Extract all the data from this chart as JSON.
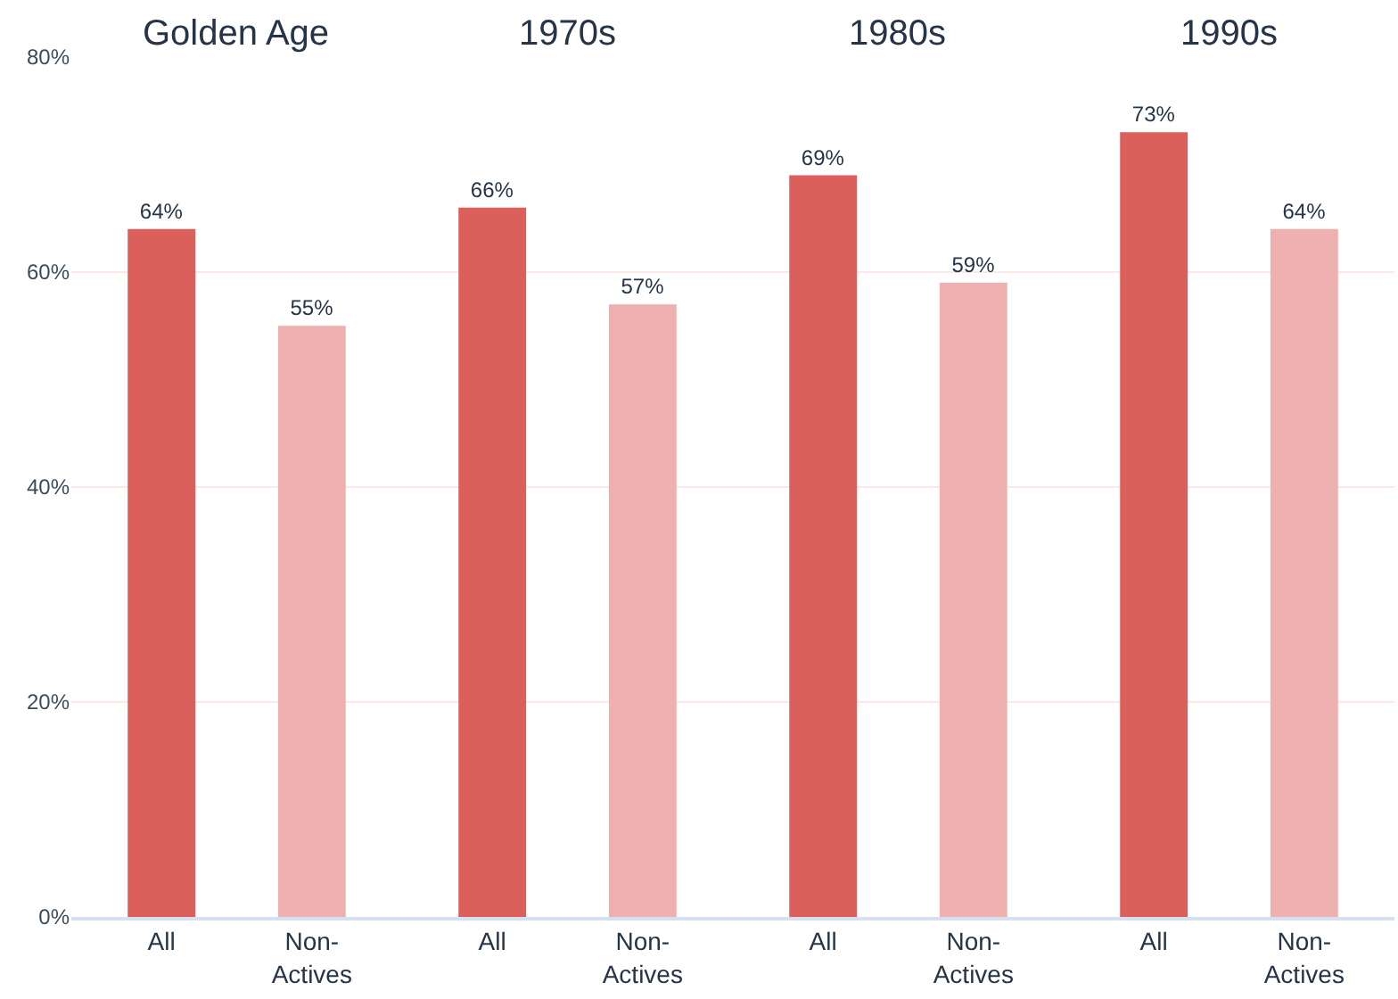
{
  "chart_data": [
    {
      "type": "bar",
      "title": "Golden Age",
      "categories": [
        "All",
        "Non-Actives"
      ],
      "values": [
        64,
        55
      ],
      "colors": [
        "#db5f5a",
        "#eeb1af"
      ],
      "value_labels": [
        "64%",
        "55%"
      ],
      "ylim": [
        0,
        80
      ],
      "yticks": [
        {
          "value": 0,
          "label": "0%"
        },
        {
          "value": 20,
          "label": "20%"
        },
        {
          "value": 40,
          "label": "40%"
        },
        {
          "value": 60,
          "label": "60%"
        },
        {
          "value": 80,
          "label": "80%"
        }
      ],
      "grid": "y"
    },
    {
      "type": "bar",
      "title": "1970s",
      "categories": [
        "All",
        "Non-Actives"
      ],
      "values": [
        66,
        57
      ],
      "colors": [
        "#db5f5a",
        "#eeb1af"
      ],
      "value_labels": [
        "66%",
        "57%"
      ],
      "ylim": [
        0,
        80
      ],
      "yticks": [
        0,
        20,
        40,
        60,
        80
      ],
      "grid": "y",
      "tick_labels": "x"
    },
    {
      "type": "bar",
      "title": "1980s",
      "categories": [
        "All",
        "Non-Actives"
      ],
      "values": [
        69,
        59
      ],
      "colors": [
        "#db5f5a",
        "#eeb1af"
      ],
      "value_labels": [
        "69%",
        "59%"
      ],
      "ylim": [
        0,
        80
      ],
      "yticks": [
        0,
        20,
        40,
        60,
        80
      ],
      "grid": "y",
      "tick_labels": "x"
    },
    {
      "type": "bar",
      "title": "1990s",
      "categories": [
        "All",
        "Non-Actives"
      ],
      "values": [
        73,
        64
      ],
      "colors": [
        "#db5f5a",
        "#eeb1af"
      ],
      "value_labels": [
        "73%",
        "64%"
      ],
      "ylim": [
        0,
        80
      ],
      "yticks": [
        0,
        20,
        40,
        60,
        80
      ],
      "grid": "y",
      "tick_labels": "x"
    }
  ]
}
